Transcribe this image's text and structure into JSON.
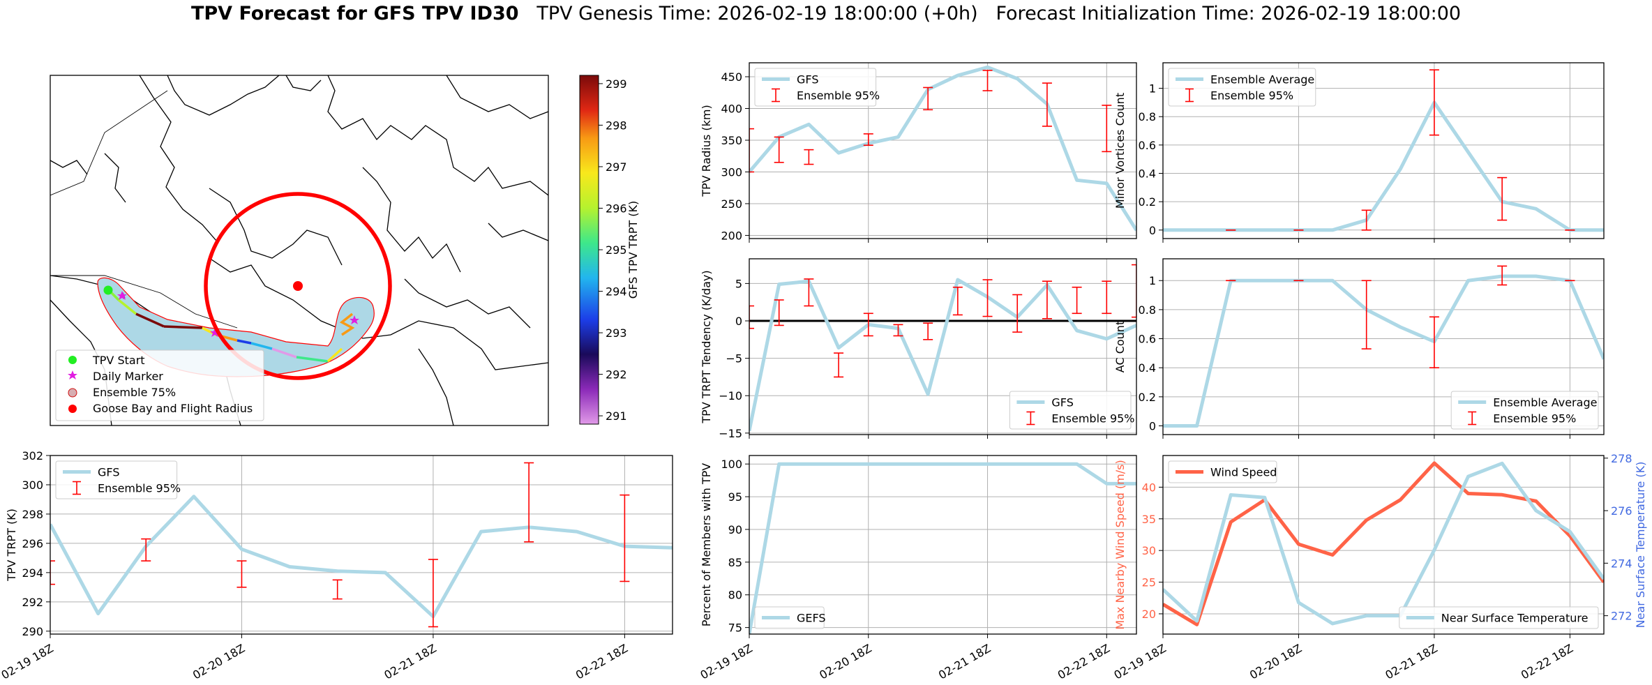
{
  "title": {
    "bold": "TPV Forecast for GFS TPV ID30",
    "genesis": "TPV Genesis Time: 2026-02-19 18:00:00 (+0h)",
    "init": "Forecast Initialization Time: 2026-02-19 18:00:00"
  },
  "colors": {
    "gfs_line": "#add8e6",
    "error_bar": "#ff0000",
    "wind": "#ff6347",
    "temp_axis": "#4169e1",
    "map_fill": "#add8e6"
  },
  "map": {
    "legend": [
      "TPV Start",
      "Daily Marker",
      "Ensemble 75%",
      "Goose Bay and Flight Radius"
    ],
    "colorbar": {
      "label": "GFS TPV TRPT (K)",
      "ticks": [
        291,
        292,
        293,
        294,
        295,
        296,
        297,
        298,
        299
      ],
      "range": [
        290.8,
        299.2
      ]
    }
  },
  "chart_data": [
    {
      "id": "radius",
      "type": "line",
      "x": [
        0,
        0.25,
        0.5,
        0.75,
        1.0,
        1.25,
        1.5,
        1.75,
        2.0,
        2.25,
        2.5,
        2.75,
        3.0,
        3.25
      ],
      "xlim": [
        0,
        3.25
      ],
      "series": [
        {
          "name": "GFS",
          "values": [
            300,
            355,
            375,
            330,
            345,
            355,
            430,
            452,
            465,
            447,
            407,
            287,
            282,
            208
          ]
        },
        {
          "name": "Ensemble 95%",
          "type": "errorbar",
          "x": [
            0,
            0.25,
            0.5,
            1.0,
            1.5,
            2.0,
            2.5,
            3.0
          ],
          "low": [
            300,
            315,
            312,
            342,
            398,
            428,
            372,
            332
          ],
          "high": [
            368,
            355,
            335,
            360,
            433,
            460,
            440,
            405
          ]
        }
      ],
      "ylabel": "TPV Radius (km)",
      "ylim": [
        195,
        472
      ],
      "yticks": [
        200,
        250,
        300,
        350,
        400,
        450
      ],
      "legend": [
        "GFS",
        "Ensemble 95%"
      ]
    },
    {
      "id": "minor",
      "type": "line",
      "x": [
        0,
        0.25,
        0.5,
        0.75,
        1.0,
        1.25,
        1.5,
        1.75,
        2.0,
        2.25,
        2.5,
        2.75,
        3.0,
        3.25
      ],
      "xlim": [
        0,
        3.25
      ],
      "series": [
        {
          "name": "Ensemble Average",
          "values": [
            0,
            0,
            0,
            0,
            0,
            0,
            0.07,
            0.43,
            0.9,
            0.55,
            0.2,
            0.15,
            0,
            0
          ]
        },
        {
          "name": "Ensemble 95%",
          "type": "errorbar",
          "x": [
            0.5,
            1.0,
            1.5,
            2.0,
            2.5,
            3.0
          ],
          "low": [
            0,
            0,
            0,
            0.67,
            0.07,
            0
          ],
          "high": [
            0,
            0,
            0.14,
            1.13,
            0.37,
            0
          ]
        }
      ],
      "ylabel": "Minor Vortices Count",
      "ylim": [
        -0.06,
        1.18
      ],
      "yticks": [
        0.0,
        0.2,
        0.4,
        0.6,
        0.8,
        1.0
      ],
      "legend": [
        "Ensemble Average",
        "Ensemble 95%"
      ]
    },
    {
      "id": "tendency",
      "type": "line",
      "x": [
        0,
        0.25,
        0.5,
        0.75,
        1.0,
        1.25,
        1.5,
        1.75,
        2.0,
        2.25,
        2.5,
        2.75,
        3.0,
        3.25
      ],
      "xlim": [
        0,
        3.25
      ],
      "series": [
        {
          "name": "GFS",
          "values": [
            -14.7,
            4.9,
            5.3,
            -3.6,
            -0.5,
            -1.0,
            -9.8,
            5.5,
            3.2,
            0.5,
            4.8,
            -1.3,
            -2.4,
            -0.6
          ]
        },
        {
          "name": "Ensemble 95%",
          "type": "errorbar",
          "x": [
            0,
            0.25,
            0.5,
            0.75,
            1.0,
            1.25,
            1.5,
            1.75,
            2.0,
            2.25,
            2.5,
            2.75,
            3.0,
            3.25
          ],
          "low": [
            -1.0,
            -0.6,
            2.0,
            -7.5,
            -2.0,
            -2.0,
            -2.5,
            0.8,
            0.6,
            -1.5,
            0.3,
            1.0,
            1.0,
            0.5
          ],
          "high": [
            2.0,
            2.8,
            5.6,
            -4.3,
            1.0,
            -0.5,
            -0.3,
            4.5,
            5.5,
            3.5,
            5.3,
            4.5,
            5.3,
            7.5
          ]
        }
      ],
      "ylabel": "TPV TRPT Tendency (K/day)",
      "ylim": [
        -15.2,
        8.3
      ],
      "yticks": [
        -15,
        -10,
        -5,
        0,
        5
      ],
      "legend": [
        "GFS",
        "Ensemble 95%"
      ]
    },
    {
      "id": "ac",
      "type": "line",
      "x": [
        0,
        0.25,
        0.5,
        0.75,
        1.0,
        1.25,
        1.5,
        1.75,
        2.0,
        2.25,
        2.5,
        2.75,
        3.0,
        3.25
      ],
      "xlim": [
        0,
        3.25
      ],
      "series": [
        {
          "name": "Ensemble Average",
          "values": [
            0,
            0,
            1.0,
            1.0,
            1.0,
            1.0,
            0.8,
            0.68,
            0.58,
            1.0,
            1.03,
            1.03,
            1.0,
            0.46
          ]
        },
        {
          "name": "Ensemble 95%",
          "type": "errorbar",
          "x": [
            0.5,
            1.0,
            1.5,
            2.0,
            2.5,
            3.0
          ],
          "low": [
            1.0,
            1.0,
            0.53,
            0.4,
            0.97,
            1.0
          ],
          "high": [
            1.0,
            1.0,
            1.0,
            0.75,
            1.1,
            1.0
          ]
        }
      ],
      "ylabel": "AC Count",
      "ylim": [
        -0.06,
        1.15
      ],
      "yticks": [
        0.0,
        0.2,
        0.4,
        0.6,
        0.8,
        1.0
      ],
      "legend": [
        "Ensemble Average",
        "Ensemble 95%"
      ]
    },
    {
      "id": "trpt",
      "type": "line",
      "x": [
        0,
        0.25,
        0.5,
        0.75,
        1.0,
        1.25,
        1.5,
        1.75,
        2.0,
        2.25,
        2.5,
        2.75,
        3.0,
        3.25
      ],
      "xlim": [
        0,
        3.25
      ],
      "series": [
        {
          "name": "GFS",
          "values": [
            297.3,
            291.2,
            295.8,
            299.2,
            295.6,
            294.4,
            294.1,
            294.0,
            291.0,
            296.8,
            297.1,
            296.8,
            295.8,
            295.7
          ]
        },
        {
          "name": "Ensemble 95%",
          "type": "errorbar",
          "x": [
            0,
            0.5,
            1.0,
            1.5,
            2.0,
            2.5,
            3.0
          ],
          "low": [
            293.2,
            294.8,
            293.0,
            292.2,
            290.3,
            296.1,
            293.4
          ],
          "high": [
            294.8,
            296.3,
            294.8,
            293.5,
            294.9,
            301.5,
            299.3
          ]
        }
      ],
      "ylabel": "TPV TRPT (K)",
      "ylim": [
        289.8,
        302
      ],
      "yticks": [
        290,
        292,
        294,
        296,
        298,
        300,
        302
      ],
      "legend": [
        "GFS",
        "Ensemble 95%"
      ]
    },
    {
      "id": "percent",
      "type": "line",
      "x": [
        0,
        0.25,
        0.5,
        0.75,
        1.0,
        1.25,
        1.5,
        1.75,
        2.0,
        2.25,
        2.5,
        2.75,
        3.0,
        3.25
      ],
      "xlim": [
        0,
        3.25
      ],
      "series": [
        {
          "name": "GEFS",
          "values": [
            74,
            100,
            100,
            100,
            100,
            100,
            100,
            100,
            100,
            100,
            100,
            100,
            97,
            97
          ]
        }
      ],
      "ylabel": "Percent of Members with TPV",
      "ylim": [
        74,
        101.3
      ],
      "yticks": [
        75,
        80,
        85,
        90,
        95,
        100
      ],
      "legend": [
        "GEFS"
      ]
    },
    {
      "id": "wind",
      "type": "line",
      "x": [
        0,
        0.25,
        0.5,
        0.75,
        1.0,
        1.25,
        1.5,
        1.75,
        2.0,
        2.25,
        2.5,
        2.75,
        3.0,
        3.25
      ],
      "xlim": [
        0,
        3.25
      ],
      "series": [
        {
          "name": "Wind Speed",
          "axis": "left",
          "values": [
            21.5,
            18.3,
            34.5,
            38.0,
            31.0,
            29.3,
            34.8,
            38.0,
            43.8,
            39.0,
            38.8,
            37.8,
            32.3,
            25.0
          ]
        },
        {
          "name": "Near Surface Temperature",
          "axis": "right",
          "values": [
            273.0,
            271.8,
            276.6,
            276.5,
            272.5,
            271.7,
            272.0,
            272.0,
            274.5,
            277.3,
            277.8,
            276.0,
            275.2,
            273.4
          ]
        }
      ],
      "ylabel": "Max Nearby Wind Speed (m/s)",
      "ylim": [
        16.8,
        45
      ],
      "yticks": [
        20,
        25,
        30,
        35,
        40
      ],
      "ylabel_right": "Near Surface Temperature (K)",
      "ylim_right": [
        271.3,
        278.1
      ],
      "yticks_right": [
        272,
        274,
        276,
        278
      ],
      "legend": [
        "Wind Speed",
        "Near Surface Temperature"
      ]
    }
  ],
  "xticks": [
    "02-19 18Z",
    "02-20 18Z",
    "02-21 18Z",
    "02-22 18Z"
  ]
}
